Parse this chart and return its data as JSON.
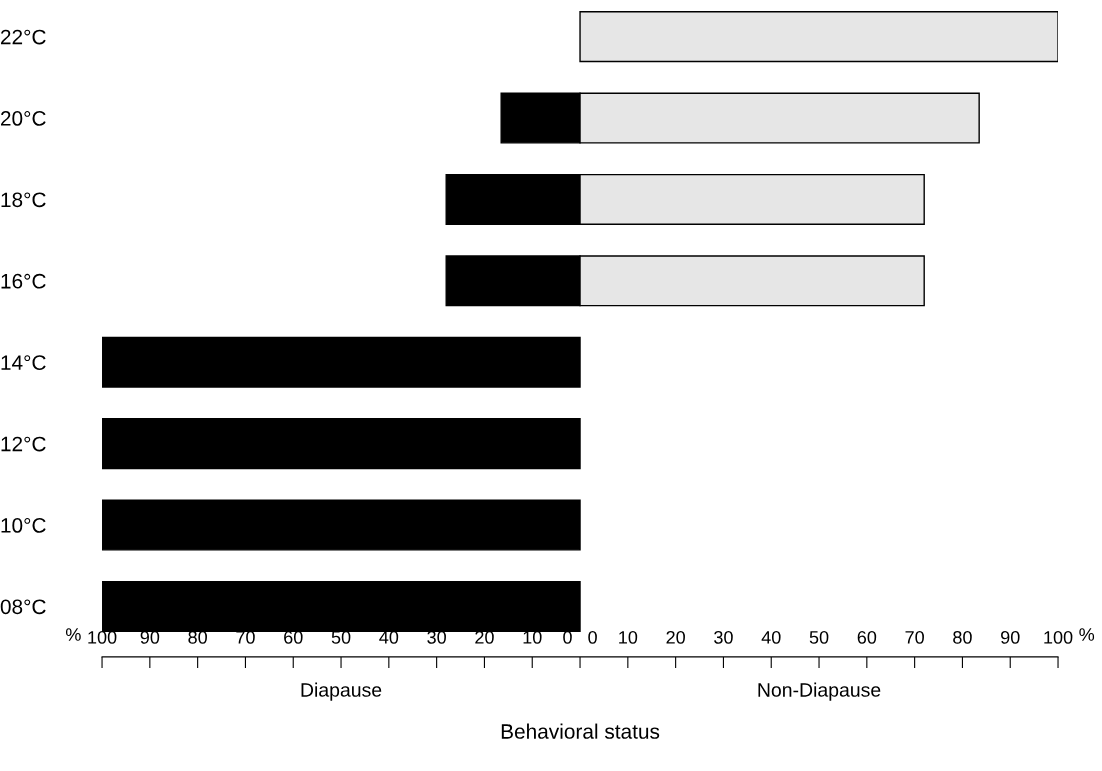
{
  "chart_data": {
    "type": "bar",
    "orientation": "horizontal",
    "xlabel": "Behavioral status",
    "categories": [
      "22°C",
      "20°C",
      "18°C",
      "16°C",
      "14°C",
      "12°C",
      "10°C",
      "08°C"
    ],
    "series": [
      {
        "color": "#000000",
        "values": [
          null,
          -16.5,
          -28,
          -28,
          -100,
          -100,
          -100,
          -100
        ]
      },
      {
        "color": "#e6e6e6",
        "values": [
          100,
          83.5,
          72,
          72,
          null,
          null,
          null,
          null
        ]
      }
    ],
    "xlim": [
      -100,
      100
    ],
    "xticks": [
      {
        "value": -100,
        "label": "100"
      },
      {
        "value": -90,
        "label": "90"
      },
      {
        "value": -80,
        "label": "80"
      },
      {
        "value": -70,
        "label": "70"
      },
      {
        "value": -60,
        "label": "60"
      },
      {
        "value": -50,
        "label": "50"
      },
      {
        "value": -40,
        "label": "40"
      },
      {
        "value": -30,
        "label": "30"
      },
      {
        "value": -20,
        "label": "20"
      },
      {
        "value": -10,
        "label": "10"
      },
      {
        "value": 0,
        "label": "0   0"
      },
      10,
      20,
      30,
      40,
      50,
      60,
      70,
      80,
      90,
      100
    ],
    "annotations": [
      "%",
      "%",
      "Diapause",
      "Non-Diapause"
    ],
    "grid": false,
    "legend": false
  }
}
